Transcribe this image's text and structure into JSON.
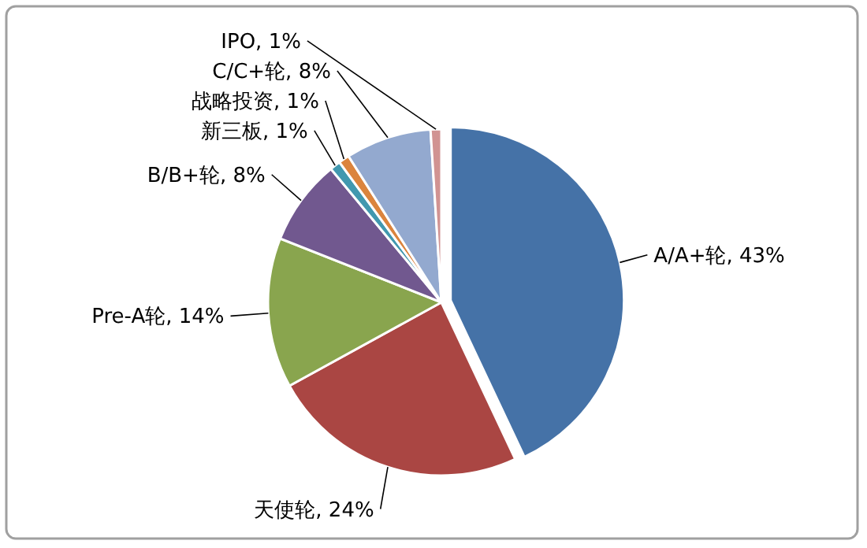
{
  "chart_data": {
    "type": "pie",
    "categories": [
      "A/A+轮",
      "天使轮",
      "Pre-A轮",
      "B/B+轮",
      "新三板",
      "战略投资",
      "C/C+轮",
      "IPO"
    ],
    "values": [
      43,
      24,
      14,
      8,
      1,
      1,
      8,
      1
    ],
    "value_labels": [
      "43%",
      "24%",
      "14%",
      "8%",
      "1%",
      "1%",
      "8%",
      "1%"
    ],
    "colors": [
      "#4572a7",
      "#aa4643",
      "#89a54e",
      "#71588f",
      "#4198af",
      "#db843d",
      "#93a9cf",
      "#d19392"
    ]
  }
}
